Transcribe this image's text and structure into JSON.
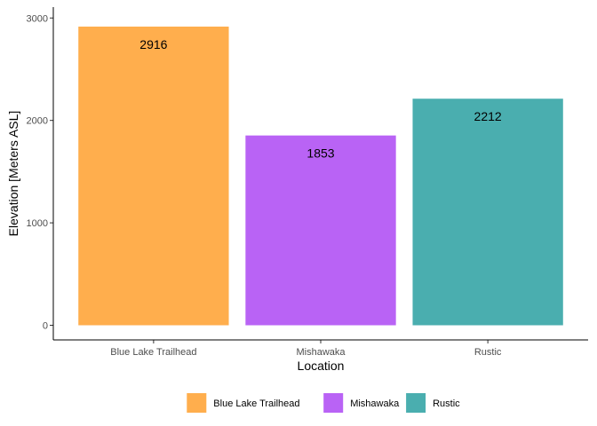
{
  "chart_data": {
    "type": "bar",
    "categories": [
      "Blue Lake Trailhead",
      "Mishawaka",
      "Rustic"
    ],
    "values": [
      2916,
      1853,
      2212
    ],
    "data_labels": [
      "2916",
      "1853",
      "2212"
    ],
    "colors": [
      "#FFAE4D",
      "#B963F5",
      "#4AAEAF"
    ],
    "xlabel": "Location",
    "ylabel": "Elevation [Meters ASL]",
    "ylim": [
      0,
      3050
    ],
    "yticks": [
      0,
      1000,
      2000,
      3000
    ],
    "ytick_labels": [
      "0",
      "1000",
      "2000",
      "3000"
    ],
    "grid": false,
    "legend": {
      "position": "bottom",
      "entries": [
        "Blue Lake Trailhead",
        "Mishawaka",
        "Rustic"
      ]
    }
  }
}
